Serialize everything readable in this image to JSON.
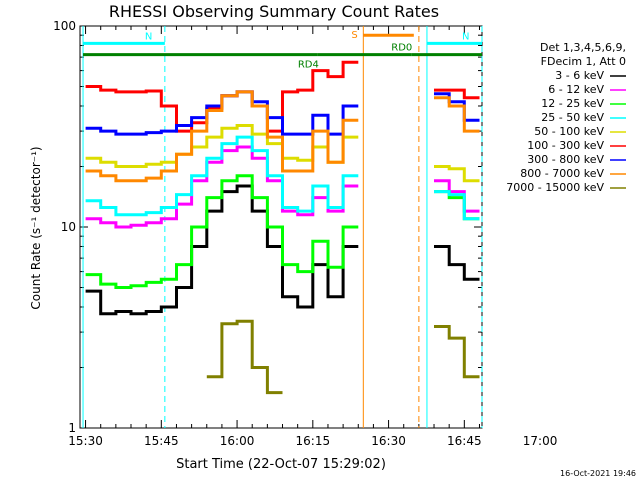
{
  "chart_data": {
    "type": "line",
    "title": "RHESSI Observing Summary Count Rates",
    "xlabel": "Start Time (22-Oct-07 15:29:02)",
    "ylabel": "Count Rate (s⁻¹ detector⁻¹)",
    "yscale": "log",
    "ylim": [
      1,
      100
    ],
    "xlim_minutes": [
      -1.1,
      78.5
    ],
    "x_ticks": [
      "15:30",
      "15:45",
      "16:00",
      "16:15",
      "16:30",
      "16:45",
      "17:00"
    ],
    "y_ticks": [
      "1",
      "10",
      "100"
    ],
    "legend_header": [
      "Det 1,3,4,5,6,9,",
      "FDecim 1, Att 0"
    ],
    "grid": false,
    "legend_placement": "right",
    "x_minutes_from_1530": [
      0,
      3,
      6,
      9,
      12,
      15,
      18,
      21,
      24,
      27,
      30,
      33,
      36,
      39,
      42,
      45,
      48,
      51,
      54,
      57,
      60,
      63,
      66,
      69,
      72,
      75
    ],
    "series": [
      {
        "name": "3 - 6 keV",
        "color": "#000000",
        "values": [
          4.8,
          3.7,
          3.8,
          3.7,
          3.8,
          4.0,
          5.0,
          8.0,
          12.0,
          15.0,
          16.0,
          12.0,
          8.0,
          4.5,
          4.0,
          6.5,
          4.5,
          8.0,
          null,
          null,
          null,
          null,
          null,
          8.0,
          6.5,
          5.5
        ]
      },
      {
        "name": "6 - 12 keV",
        "color": "#ff00ff",
        "values": [
          11,
          10.5,
          10,
          10.2,
          10.5,
          11,
          13,
          17,
          21,
          24,
          25,
          22,
          17,
          12,
          11.5,
          14,
          12,
          16,
          null,
          null,
          null,
          null,
          null,
          17,
          15,
          12
        ]
      },
      {
        "name": "12 - 25 keV",
        "color": "#00ff00",
        "values": [
          5.8,
          5.2,
          5.0,
          5.1,
          5.3,
          5.5,
          6.5,
          10,
          14,
          17,
          18,
          14,
          10,
          6.5,
          6,
          8.5,
          6.3,
          10,
          null,
          null,
          null,
          null,
          null,
          15,
          14,
          11
        ]
      },
      {
        "name": "25 - 50 keV",
        "color": "#00ffff",
        "values": [
          13.5,
          12.5,
          11.5,
          11.5,
          11.8,
          12.5,
          14.5,
          18,
          22,
          26,
          28,
          24,
          18,
          12.5,
          12,
          16,
          12.5,
          18,
          null,
          null,
          null,
          null,
          null,
          15,
          14.5,
          11
        ]
      },
      {
        "name": "50 - 100 keV",
        "color": "#dddd00",
        "values": [
          22,
          21,
          20,
          20,
          20.5,
          21,
          23,
          25,
          28,
          31,
          32,
          29,
          26,
          22,
          21.5,
          25,
          21,
          28,
          null,
          null,
          null,
          null,
          null,
          20,
          19.5,
          17
        ]
      },
      {
        "name": "100 - 300 keV",
        "color": "#ff0000",
        "values": [
          50,
          48,
          47,
          47,
          47.5,
          40,
          30,
          33,
          39,
          45,
          47,
          40,
          30,
          47,
          48,
          60,
          56,
          66,
          null,
          null,
          null,
          null,
          null,
          48,
          48,
          44
        ]
      },
      {
        "name": "300 - 800 keV",
        "color": "#0000ff",
        "values": [
          31,
          30,
          29,
          29,
          29.5,
          30,
          32,
          35,
          40,
          45,
          47,
          42,
          35,
          29,
          29,
          36,
          29,
          40,
          null,
          null,
          null,
          null,
          null,
          46,
          42,
          34
        ]
      },
      {
        "name": "800 - 7000 keV",
        "color": "#ff8800",
        "values": [
          19,
          18,
          17,
          17,
          17.5,
          19,
          23,
          30,
          38,
          45,
          47,
          40,
          28,
          19,
          19,
          30,
          21,
          34,
          null,
          null,
          null,
          null,
          null,
          44,
          40,
          30
        ]
      },
      {
        "name": "7000 - 15000 keV",
        "color": "#808000",
        "values": [
          null,
          null,
          null,
          null,
          null,
          null,
          null,
          null,
          1.8,
          3.3,
          3.4,
          2.0,
          1.5,
          null,
          null,
          null,
          null,
          null,
          null,
          null,
          null,
          null,
          null,
          3.2,
          2.8,
          1.8
        ]
      }
    ],
    "annotations": [
      {
        "label": "N",
        "color": "#00ffff",
        "x_start": -0.5,
        "x_end": 15.7,
        "y": 82
      },
      {
        "label": "N",
        "color": "#00ffff",
        "x_start": 67.6,
        "x_end": 78.5,
        "y": 82
      },
      {
        "label": "RD4",
        "color": "#008000",
        "x_start": -0.5,
        "x_end": 46.0,
        "y": 72
      },
      {
        "label": "RD0",
        "color": "#008000",
        "x_start": 46.0,
        "x_end": 64.5,
        "y": 72
      },
      {
        "label": "",
        "color": "#008000",
        "x_start": 64.5,
        "x_end": 78.5,
        "y": 72
      },
      {
        "label": "S",
        "color": "#ff8800",
        "x_start": 55.0,
        "x_end": 65.0,
        "y": 90
      }
    ],
    "vertical_markers": [
      {
        "x": -0.5,
        "color": "#00ffff",
        "style": "solid"
      },
      {
        "x": 15.7,
        "color": "#00ffff",
        "style": "dashed"
      },
      {
        "x": 55.0,
        "color": "#ff8800",
        "style": "solid"
      },
      {
        "x": 66.0,
        "color": "#ff8800",
        "style": "dashed"
      },
      {
        "x": 67.6,
        "color": "#00ffff",
        "style": "solid"
      },
      {
        "x": 78.5,
        "color": "#00ffff",
        "style": "dashed"
      }
    ]
  },
  "timestamp": "16-Oct-2021 19:46"
}
